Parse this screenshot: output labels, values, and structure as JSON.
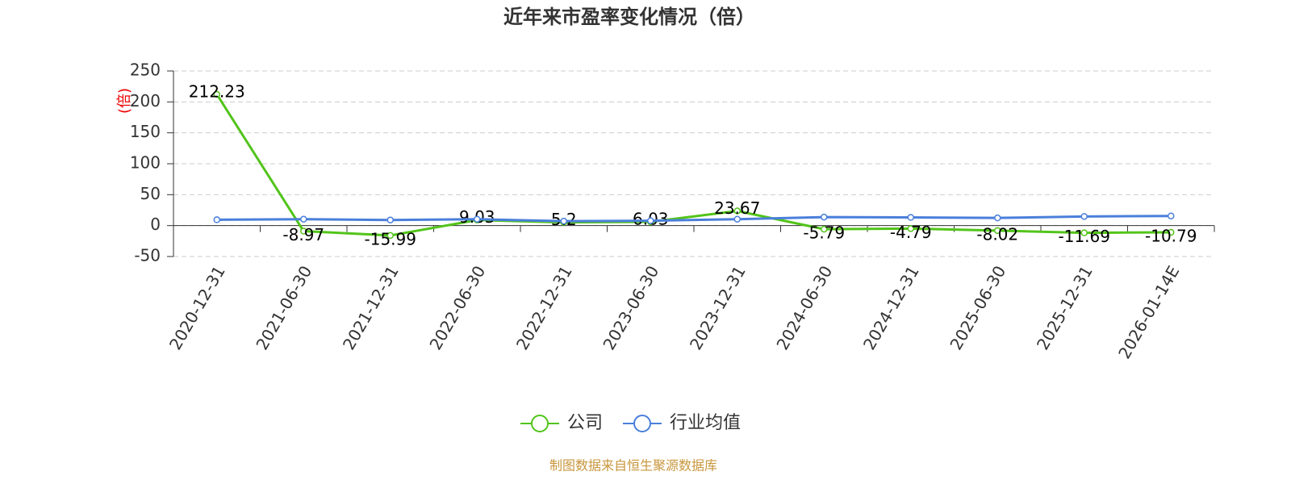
{
  "chart_data": {
    "type": "line",
    "title": "近年来市盈率变化情况（倍）",
    "y_label": "(倍)",
    "source": "制图数据来自恒生聚源数据库",
    "categories": [
      "2020-12-31",
      "2021-06-30",
      "2021-12-31",
      "2022-06-30",
      "2022-12-31",
      "2023-06-30",
      "2023-12-31",
      "2024-06-30",
      "2024-12-31",
      "2025-06-30",
      "2025-12-31",
      "2026-01-14E"
    ],
    "series": [
      {
        "name": "公司",
        "color": "#52c41a",
        "values": [
          212.23,
          -8.97,
          -15.99,
          9.03,
          5.2,
          6.03,
          23.67,
          -5.79,
          -4.79,
          -8.02,
          -11.69,
          -10.79
        ]
      },
      {
        "name": "行业均值",
        "color": "#4a7fdb",
        "values": [
          9.5,
          10.4,
          9.1,
          10.4,
          7.2,
          7.8,
          10.4,
          13.8,
          13.2,
          12.4,
          14.8,
          15.6
        ]
      }
    ],
    "ylim": [
      -50,
      250
    ],
    "yticks": [
      -50,
      0,
      50,
      100,
      150,
      200,
      250
    ],
    "grid": true
  }
}
